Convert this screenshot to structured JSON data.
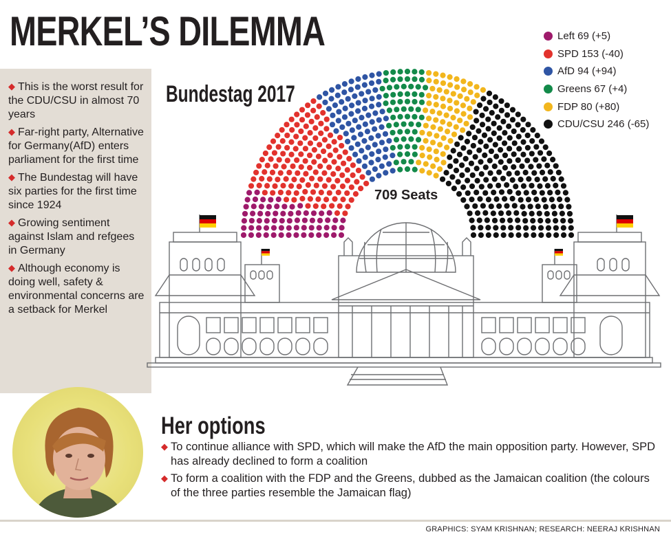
{
  "title": "MERKEL’S DILEMMA",
  "bullets": [
    "This is the worst result for the CDU/CSU in almost 70 years",
    "Far-right party, Alternative for Germany(AfD) enters parliament for the first time",
    "The Bundestag will have six parties for the first time since 1924",
    "Growing sentiment against Islam and refgees in Germany",
    "Although economy is doing well, safety & environmental concerns are a setback for Merkel"
  ],
  "chart_data": {
    "type": "parliament",
    "title": "Bundestag 2017",
    "total_label": "709 Seats",
    "total": 709,
    "parties": [
      {
        "name": "Left",
        "seats": 69,
        "change": "+5",
        "color": "#9e1a6b",
        "label": "Left 69 (+5)"
      },
      {
        "name": "SPD",
        "seats": 153,
        "change": "-40",
        "color": "#e2322d",
        "label": "SPD 153 (-40)"
      },
      {
        "name": "AfD",
        "seats": 94,
        "change": "+94",
        "color": "#2f55a4",
        "label": "AfD 94 (+94)"
      },
      {
        "name": "Greens",
        "seats": 67,
        "change": "+4",
        "color": "#138a4a",
        "label": "Greens 67 (+4)"
      },
      {
        "name": "FDP",
        "seats": 80,
        "change": "+80",
        "color": "#f2b61d",
        "label": "FDP 80 (+80)"
      },
      {
        "name": "CDU/CSU",
        "seats": 246,
        "change": "-65",
        "color": "#111111",
        "label": "CDU/CSU 246 (-65)"
      }
    ]
  },
  "options": {
    "title": "Her options",
    "items": [
      "To continue alliance with SPD, which will make the AfD the main opposition party. However, SPD has already declined to form a coalition",
      "To form a coalition with the FDP and the Greens, dubbed as the Jamaican coalition (the colours of the three parties resemble the Jamaican flag)"
    ]
  },
  "credits": "GRAPHICS: SYAM KRISHNAN; RESEARCH: NEERAJ KRISHNAN",
  "bullet_glyph": "◆"
}
